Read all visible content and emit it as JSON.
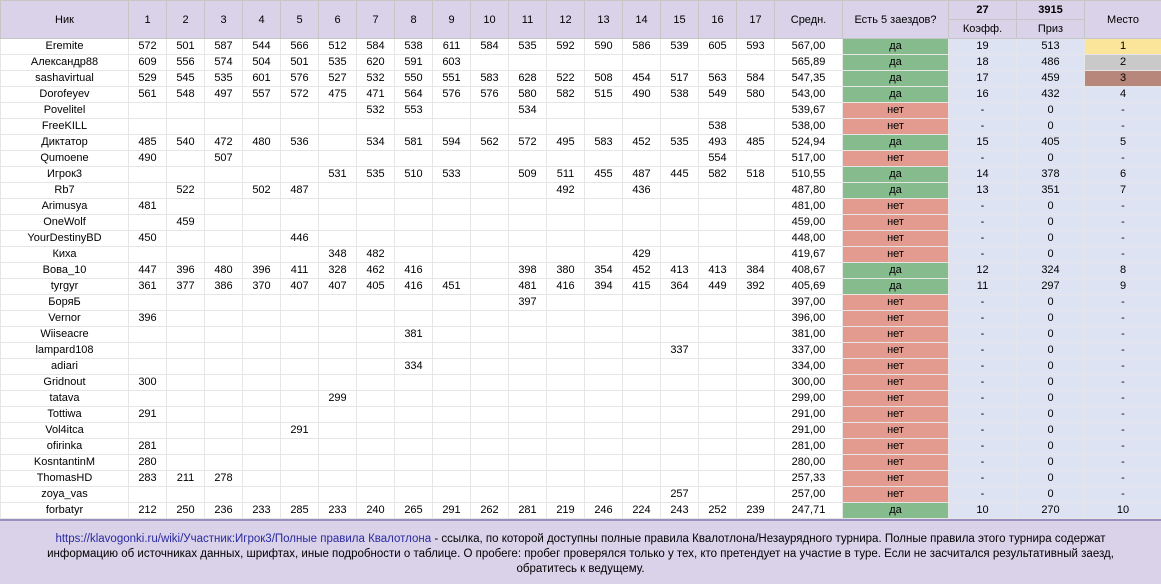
{
  "table": {
    "columns": [
      "Ник",
      "1",
      "2",
      "3",
      "4",
      "5",
      "6",
      "7",
      "8",
      "9",
      "10",
      "11",
      "12",
      "13",
      "14",
      "15",
      "16",
      "17",
      "Средн.",
      "Есть 5 заездов?",
      "Коэфф.",
      "Приз",
      "Место"
    ],
    "header_totals": {
      "coef": 27,
      "prize": 3915
    },
    "status_colors": {
      "да": "#86bb8d",
      "нет": "#e29b8e"
    },
    "place_colors": [
      "#fbe59a",
      "#c9c9c9",
      "#b8877b"
    ],
    "rows": [
      [
        "Eremite",
        572,
        501,
        587,
        544,
        566,
        512,
        584,
        538,
        611,
        584,
        535,
        592,
        590,
        586,
        539,
        605,
        593,
        "567,00",
        "да",
        19,
        513,
        1
      ],
      [
        "Александр88",
        609,
        556,
        574,
        504,
        501,
        535,
        620,
        591,
        603,
        null,
        null,
        null,
        null,
        null,
        null,
        null,
        null,
        "565,89",
        "да",
        18,
        486,
        2
      ],
      [
        "sashavirtual",
        529,
        545,
        535,
        601,
        576,
        527,
        532,
        550,
        551,
        583,
        628,
        522,
        508,
        454,
        517,
        563,
        584,
        "547,35",
        "да",
        17,
        459,
        3
      ],
      [
        "Dorofeyev",
        561,
        548,
        497,
        557,
        572,
        475,
        471,
        564,
        576,
        576,
        580,
        582,
        515,
        490,
        538,
        549,
        580,
        "543,00",
        "да",
        16,
        432,
        4
      ],
      [
        "Povelitel",
        null,
        null,
        null,
        null,
        null,
        null,
        532,
        553,
        null,
        null,
        534,
        null,
        null,
        null,
        null,
        null,
        null,
        "539,67",
        "нет",
        "-",
        0,
        "-"
      ],
      [
        "FreeKILL",
        null,
        null,
        null,
        null,
        null,
        null,
        null,
        null,
        null,
        null,
        null,
        null,
        null,
        null,
        null,
        538,
        null,
        "538,00",
        "нет",
        "-",
        0,
        "-"
      ],
      [
        "Диктатор",
        485,
        540,
        472,
        480,
        536,
        null,
        534,
        581,
        594,
        562,
        572,
        495,
        583,
        452,
        535,
        493,
        485,
        "524,94",
        "да",
        15,
        405,
        5
      ],
      [
        "Qumoene",
        490,
        null,
        507,
        null,
        null,
        null,
        null,
        null,
        null,
        null,
        null,
        null,
        null,
        null,
        null,
        554,
        null,
        "517,00",
        "нет",
        "-",
        0,
        "-"
      ],
      [
        "Игрок3",
        null,
        null,
        null,
        null,
        null,
        531,
        535,
        510,
        533,
        null,
        509,
        511,
        455,
        487,
        445,
        582,
        518,
        "510,55",
        "да",
        14,
        378,
        6
      ],
      [
        "Rb7",
        null,
        522,
        null,
        502,
        487,
        null,
        null,
        null,
        null,
        null,
        null,
        492,
        null,
        436,
        null,
        null,
        null,
        "487,80",
        "да",
        13,
        351,
        7
      ],
      [
        "Arimusya",
        481,
        null,
        null,
        null,
        null,
        null,
        null,
        null,
        null,
        null,
        null,
        null,
        null,
        null,
        null,
        null,
        null,
        "481,00",
        "нет",
        "-",
        0,
        "-"
      ],
      [
        "OneWolf",
        null,
        459,
        null,
        null,
        null,
        null,
        null,
        null,
        null,
        null,
        null,
        null,
        null,
        null,
        null,
        null,
        null,
        "459,00",
        "нет",
        "-",
        0,
        "-"
      ],
      [
        "YourDestinyBD",
        450,
        null,
        null,
        null,
        446,
        null,
        null,
        null,
        null,
        null,
        null,
        null,
        null,
        null,
        null,
        null,
        null,
        "448,00",
        "нет",
        "-",
        0,
        "-"
      ],
      [
        "Киха",
        null,
        null,
        null,
        null,
        null,
        348,
        482,
        null,
        null,
        null,
        null,
        null,
        null,
        429,
        null,
        null,
        null,
        "419,67",
        "нет",
        "-",
        0,
        "-"
      ],
      [
        "Вова_10",
        447,
        396,
        480,
        396,
        411,
        328,
        462,
        416,
        null,
        null,
        398,
        380,
        354,
        452,
        413,
        413,
        384,
        "408,67",
        "да",
        12,
        324,
        8
      ],
      [
        "tyrgyr",
        361,
        377,
        386,
        370,
        407,
        407,
        405,
        416,
        451,
        null,
        481,
        416,
        394,
        415,
        364,
        449,
        392,
        "405,69",
        "да",
        11,
        297,
        9
      ],
      [
        "БоряБ",
        null,
        null,
        null,
        null,
        null,
        null,
        null,
        null,
        null,
        null,
        397,
        null,
        null,
        null,
        null,
        null,
        null,
        "397,00",
        "нет",
        "-",
        0,
        "-"
      ],
      [
        "Vernor",
        396,
        null,
        null,
        null,
        null,
        null,
        null,
        null,
        null,
        null,
        null,
        null,
        null,
        null,
        null,
        null,
        null,
        "396,00",
        "нет",
        "-",
        0,
        "-"
      ],
      [
        "Wiiseacre",
        null,
        null,
        null,
        null,
        null,
        null,
        null,
        381,
        null,
        null,
        null,
        null,
        null,
        null,
        null,
        null,
        null,
        "381,00",
        "нет",
        "-",
        0,
        "-"
      ],
      [
        "lampard108",
        null,
        null,
        null,
        null,
        null,
        null,
        null,
        null,
        null,
        null,
        null,
        null,
        null,
        null,
        337,
        null,
        null,
        "337,00",
        "нет",
        "-",
        0,
        "-"
      ],
      [
        "adiari",
        null,
        null,
        null,
        null,
        null,
        null,
        null,
        334,
        null,
        null,
        null,
        null,
        null,
        null,
        null,
        null,
        null,
        "334,00",
        "нет",
        "-",
        0,
        "-"
      ],
      [
        "Gridnout",
        300,
        null,
        null,
        null,
        null,
        null,
        null,
        null,
        null,
        null,
        null,
        null,
        null,
        null,
        null,
        null,
        null,
        "300,00",
        "нет",
        "-",
        0,
        "-"
      ],
      [
        "tatava",
        null,
        null,
        null,
        null,
        null,
        299,
        null,
        null,
        null,
        null,
        null,
        null,
        null,
        null,
        null,
        null,
        null,
        "299,00",
        "нет",
        "-",
        0,
        "-"
      ],
      [
        "Tottiwa",
        291,
        null,
        null,
        null,
        null,
        null,
        null,
        null,
        null,
        null,
        null,
        null,
        null,
        null,
        null,
        null,
        null,
        "291,00",
        "нет",
        "-",
        0,
        "-"
      ],
      [
        "Vol4itca",
        null,
        null,
        null,
        null,
        291,
        null,
        null,
        null,
        null,
        null,
        null,
        null,
        null,
        null,
        null,
        null,
        null,
        "291,00",
        "нет",
        "-",
        0,
        "-"
      ],
      [
        "ofirinka",
        281,
        null,
        null,
        null,
        null,
        null,
        null,
        null,
        null,
        null,
        null,
        null,
        null,
        null,
        null,
        null,
        null,
        "281,00",
        "нет",
        "-",
        0,
        "-"
      ],
      [
        "KosntantinM",
        280,
        null,
        null,
        null,
        null,
        null,
        null,
        null,
        null,
        null,
        null,
        null,
        null,
        null,
        null,
        null,
        null,
        "280,00",
        "нет",
        "-",
        0,
        "-"
      ],
      [
        "ThomasHD",
        283,
        211,
        278,
        null,
        null,
        null,
        null,
        null,
        null,
        null,
        null,
        null,
        null,
        null,
        null,
        null,
        null,
        "257,33",
        "нет",
        "-",
        0,
        "-"
      ],
      [
        "zoya_vas",
        null,
        null,
        null,
        null,
        null,
        null,
        null,
        null,
        null,
        null,
        null,
        null,
        null,
        null,
        257,
        null,
        null,
        "257,00",
        "нет",
        "-",
        0,
        "-"
      ],
      [
        "forbatyr",
        212,
        250,
        236,
        233,
        285,
        233,
        240,
        265,
        291,
        262,
        281,
        219,
        246,
        224,
        243,
        252,
        239,
        "247,71",
        "да",
        10,
        270,
        10
      ]
    ]
  },
  "footer": {
    "link": "https://klavogonki.ru/wiki/Участник:Игрок3/Полные правила Квалотлона",
    "text": " - ссылка, по которой доступны полные правила Квалотлона/Незаурядного турнира. Полные правила этого турнира содержат информацию об источниках данных, шрифтах, иные подробности о таблице. О пробеге: пробег проверялся только у тех, кто претендует на участие в туре. Если не засчитался результативный заезд, обратитесь к ведущему."
  }
}
